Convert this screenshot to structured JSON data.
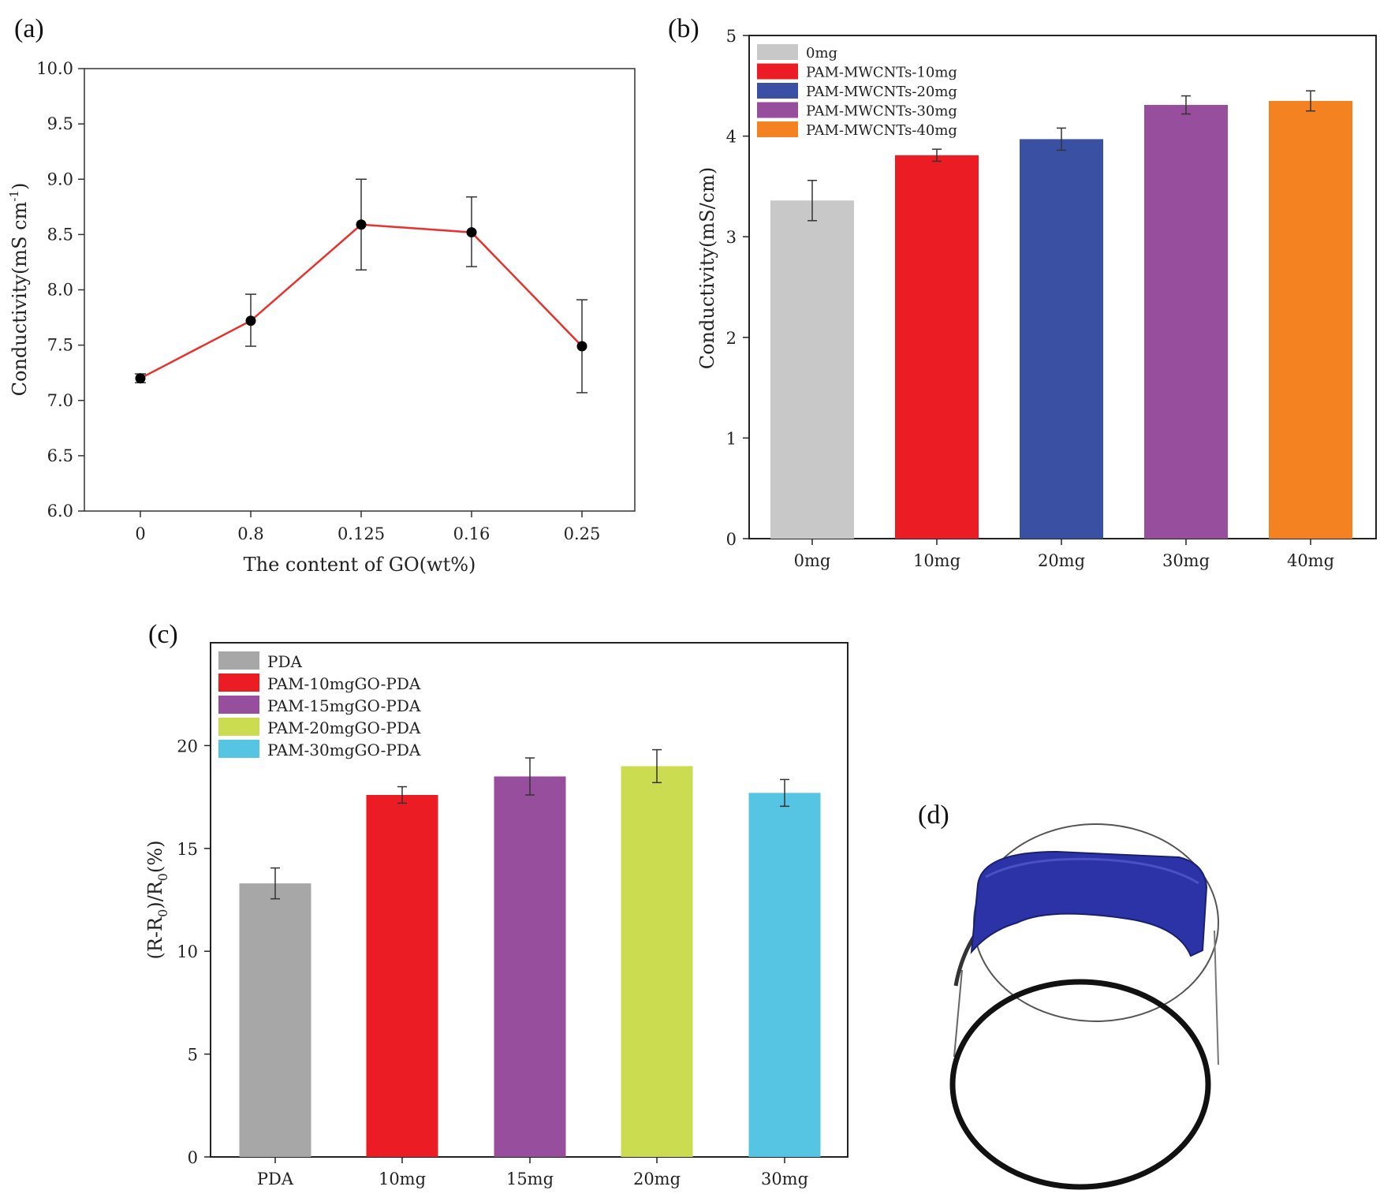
{
  "chart_data": [
    {
      "panel": "(a)",
      "type": "line",
      "title": "",
      "xlabel": "The content of GO(wt%)",
      "ylabel_main": "Conductivity(mS cm",
      "ylabel_sup": "-1",
      "ylabel_end": ")",
      "categories": [
        "0",
        "0.8",
        "0.125",
        "0.16",
        "0.25"
      ],
      "values": [
        7.2,
        7.72,
        8.59,
        8.52,
        7.49
      ],
      "errors_low": [
        7.16,
        7.49,
        8.18,
        8.21,
        7.07
      ],
      "errors_high": [
        7.24,
        7.96,
        9.0,
        8.84,
        7.91
      ],
      "yticks": [
        "6.0",
        "6.5",
        "7.0",
        "7.5",
        "8.0",
        "8.5",
        "9.0",
        "9.5",
        "10.0"
      ],
      "ylim": [
        6.0,
        10.0
      ],
      "line_color": "#e8312c",
      "marker_color": "#000000",
      "grid": false
    },
    {
      "panel": "(b)",
      "type": "bar",
      "title": "",
      "xlabel": "",
      "ylabel": "Conductivity(mS/cm)",
      "categories": [
        "0mg",
        "10mg",
        "20mg",
        "30mg",
        "40mg"
      ],
      "values": [
        3.36,
        3.81,
        3.97,
        4.31,
        4.35
      ],
      "errors": [
        0.2,
        0.06,
        0.11,
        0.09,
        0.1
      ],
      "colors": [
        "#c8c8c8",
        "#ec1c24",
        "#3a51a3",
        "#974f9d",
        "#f58220"
      ],
      "legend": [
        "0mg",
        "PAM-MWCNTs-10mg",
        "PAM-MWCNTs-20mg",
        "PAM-MWCNTs-30mg",
        "PAM-MWCNTs-40mg"
      ],
      "legend_position": "top-left",
      "yticks": [
        "0",
        "1",
        "2",
        "3",
        "4",
        "5"
      ],
      "ylim": [
        0,
        5
      ],
      "grid": false
    },
    {
      "panel": "(c)",
      "type": "bar",
      "title": "",
      "xlabel": "",
      "ylabel_parts": [
        "(R-R",
        "0",
        ")/R",
        "0",
        "(%)"
      ],
      "categories": [
        "PDA",
        "10mg",
        "15mg",
        "20mg",
        "30mg"
      ],
      "values": [
        13.3,
        17.6,
        18.5,
        19.0,
        17.7
      ],
      "errors": [
        0.75,
        0.4,
        0.9,
        0.8,
        0.65
      ],
      "colors": [
        "#a7a7a7",
        "#ec1c24",
        "#974f9d",
        "#cbdc50",
        "#55c5e3"
      ],
      "legend": [
        "PDA",
        "PAM-10mgGO-PDA",
        "PAM-15mgGO-PDA",
        "PAM-20mgGO-PDA",
        "PAM-30mgGO-PDA"
      ],
      "legend_position": "top-left",
      "yticks": [
        "0",
        "5",
        "10",
        "15",
        "20"
      ],
      "ylim": [
        0,
        25
      ],
      "grid": false
    }
  ],
  "panel_d": {
    "label": "(d)",
    "illustration": "transparent-cylinder-with-blue-band",
    "band_color": "#2b33a6"
  }
}
